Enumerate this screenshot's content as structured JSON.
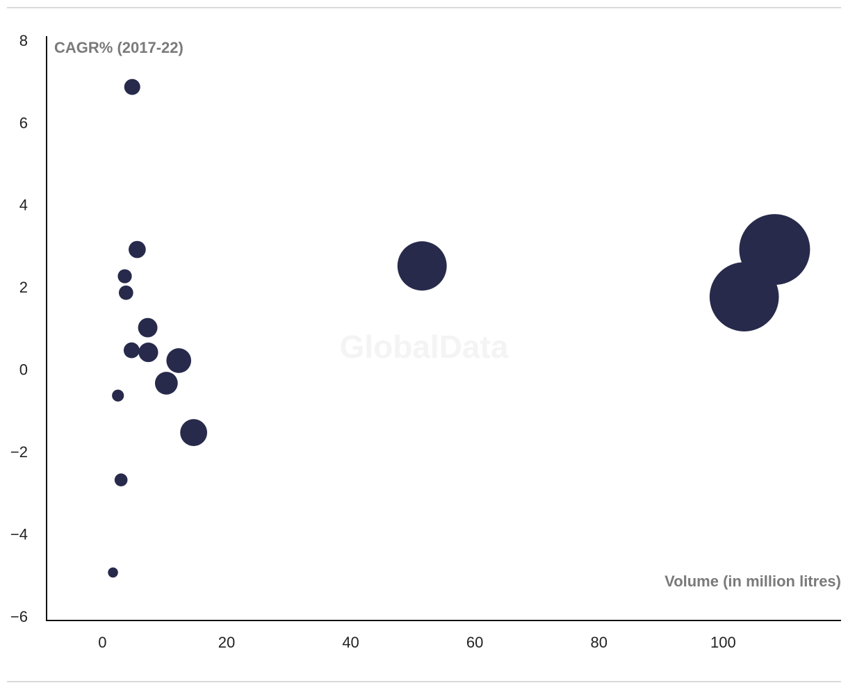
{
  "chart_data": {
    "type": "scatter",
    "watermark": "GlobalData",
    "y_label": "CAGR% (2017-22)",
    "x_label": "Volume (in million litres)",
    "color": "#272a4b",
    "x": [
      4.8,
      5.6,
      3.6,
      3.8,
      7.3,
      4.7,
      7.4,
      12.3,
      10.3,
      2.5,
      14.7,
      3.0,
      1.7,
      51.5,
      108.3,
      103.4
    ],
    "values": [
      6.9,
      2.95,
      2.3,
      1.9,
      1.05,
      0.5,
      0.45,
      0.25,
      -0.3,
      -0.6,
      -1.5,
      -2.65,
      -4.9,
      2.55,
      2.95,
      1.8
    ],
    "xlim": [
      -9,
      119
    ],
    "ylim": [
      -6.1,
      8
    ],
    "xticks": [
      0,
      20,
      40,
      60,
      80,
      100
    ],
    "yticks": [
      {
        "value": -6,
        "label": "−6"
      },
      {
        "value": -4,
        "label": "−4"
      },
      {
        "value": -2,
        "label": "−2"
      },
      0,
      2,
      4,
      6,
      8
    ],
    "grid": false
  }
}
